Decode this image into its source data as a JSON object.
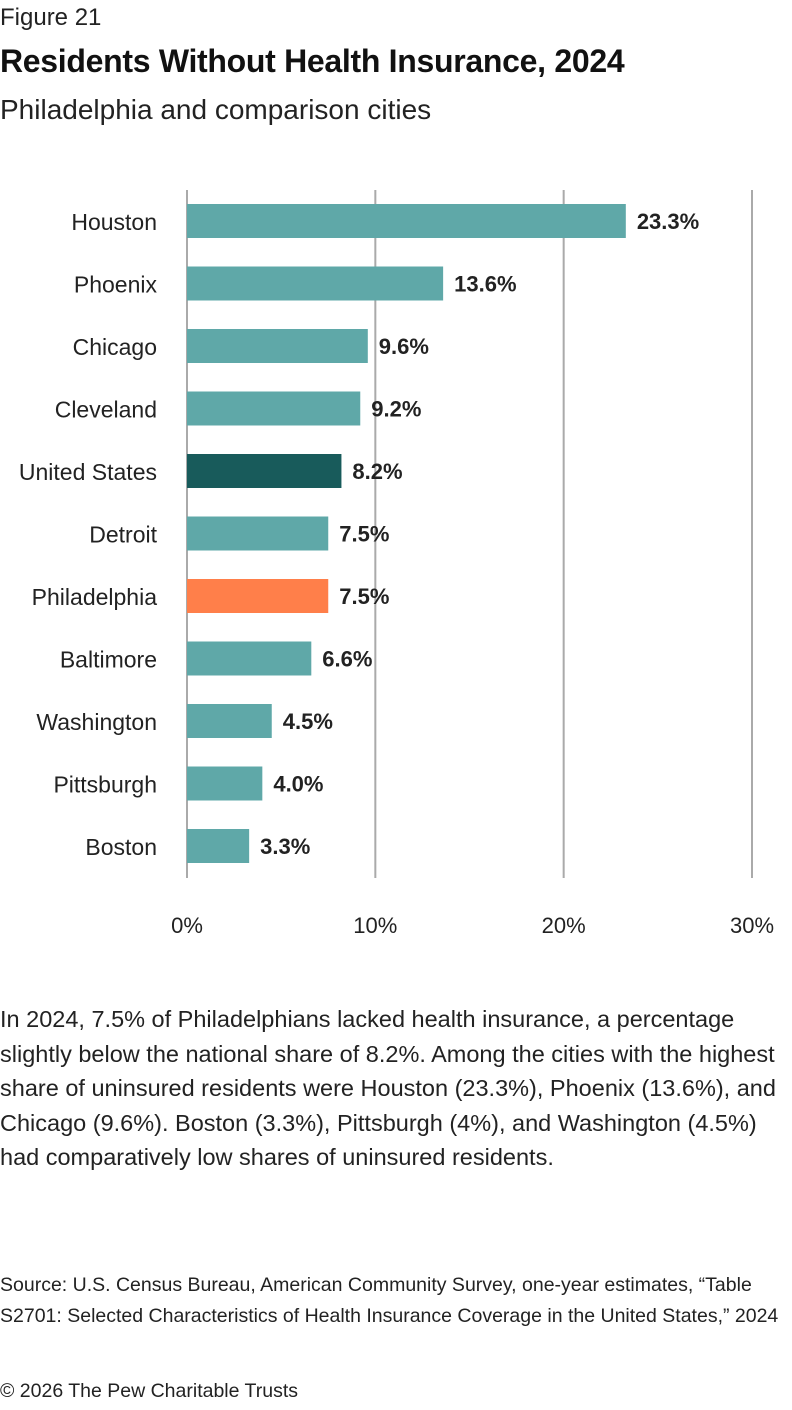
{
  "header": {
    "figure_label": "Figure 21",
    "title": "Residents Without Health Insurance, 2024",
    "subtitle": "Philadelphia and comparison cities"
  },
  "chart_data": {
    "type": "bar",
    "orientation": "horizontal",
    "categories": [
      "Houston",
      "Phoenix",
      "Chicago",
      "Cleveland",
      "United States",
      "Detroit",
      "Philadelphia",
      "Baltimore",
      "Washington",
      "Pittsburgh",
      "Boston"
    ],
    "values": [
      23.3,
      13.6,
      9.6,
      9.2,
      8.2,
      7.5,
      7.5,
      6.6,
      4.5,
      4.0,
      3.3
    ],
    "data_labels": [
      "23.3%",
      "13.6%",
      "9.6%",
      "9.2%",
      "8.2%",
      "7.5%",
      "7.5%",
      "6.6%",
      "4.5%",
      "4.0%",
      "3.3%"
    ],
    "bar_types": [
      "city",
      "city",
      "city",
      "city",
      "national",
      "city",
      "highlight",
      "city",
      "city",
      "city",
      "city"
    ],
    "colors": {
      "city": "#5fa8a8",
      "national": "#185b5b",
      "highlight": "#ff7f4a",
      "grid": "#aaaaaa"
    },
    "xlim": [
      0,
      30
    ],
    "xticks": [
      0,
      10,
      20,
      30
    ],
    "xtick_labels": [
      "0%",
      "10%",
      "20%",
      "30%"
    ],
    "grid": true,
    "xlabel": "",
    "ylabel": ""
  },
  "body_text": "In 2024, 7.5% of Philadelphians lacked health insurance, a percentage slightly below the national share of 8.2%. Among the cities with the highest share of uninsured residents were Houston (23.3%), Phoenix (13.6%), and Chicago (9.6%). Boston (3.3%), Pittsburgh (4%), and Washington (4.5%) had comparatively low shares of uninsured residents.",
  "source": "Source: U.S. Census Bureau, American Community Survey, one-year estimates, “Table S2701: Selected Characteristics of Health Insurance Coverage in the United States,” 2024",
  "copyright": "© 2026 The Pew Charitable Trusts"
}
